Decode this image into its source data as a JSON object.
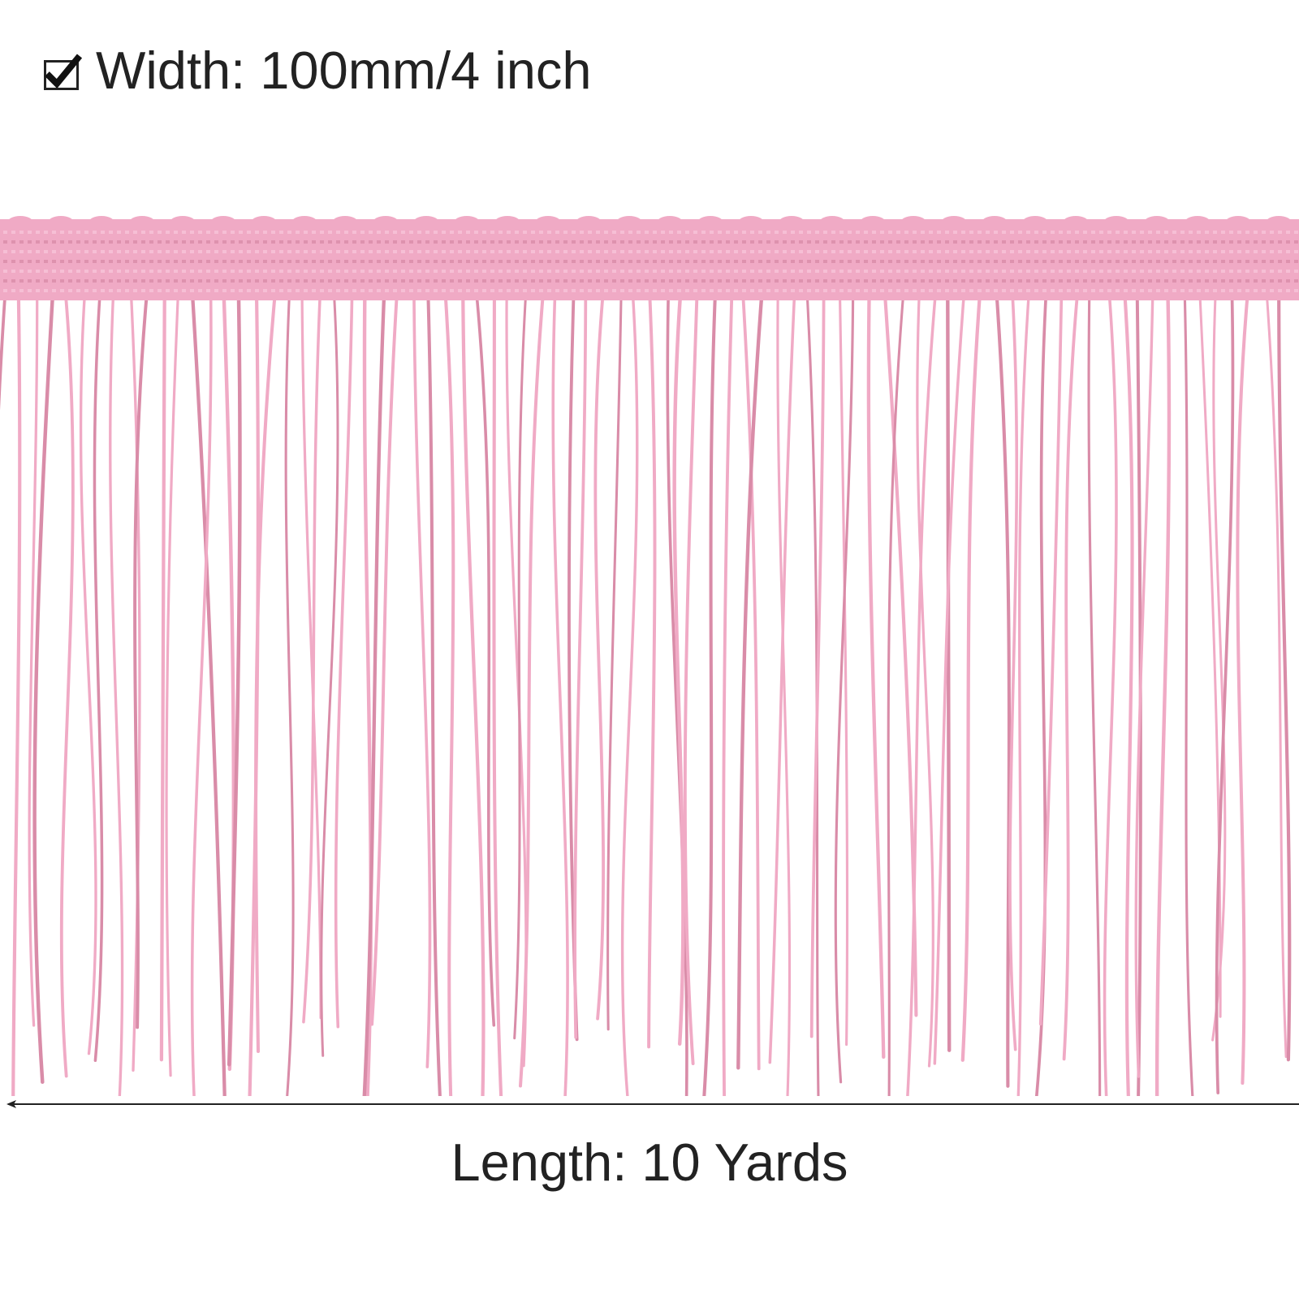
{
  "product_spec": {
    "width_text": "Width: 100mm/4 inch",
    "length_text": "Length: 10 Yards"
  },
  "colors": {
    "fringe_pink": "#f0aac5",
    "fringe_shadow": "#d98ca8",
    "text": "#222222",
    "background": "#ffffff"
  },
  "icons": {
    "width_marker": "checkbox-checked-icon",
    "length_marker": "left-arrow-line"
  }
}
